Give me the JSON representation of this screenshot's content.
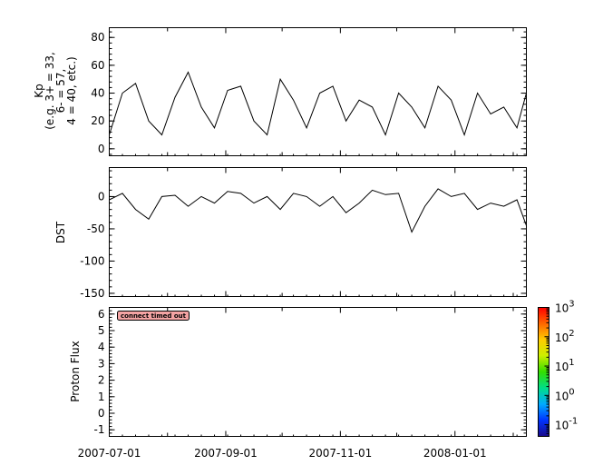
{
  "chart_data": [
    {
      "type": "line",
      "ylabel_lines": [
        "Kp",
        "(e.g. 3+ = 33,",
        "6- = 57,",
        "4 = 40, etc.)"
      ],
      "ylim": [
        -5,
        87
      ],
      "yticks": [
        0,
        20,
        40,
        60,
        80
      ],
      "xlim": [
        "2007-07-01",
        "2008-02-08"
      ],
      "x": [
        "2007-07-01",
        "2007-07-08",
        "2007-07-15",
        "2007-07-22",
        "2007-07-29",
        "2007-08-05",
        "2007-08-12",
        "2007-08-19",
        "2007-08-26",
        "2007-09-02",
        "2007-09-09",
        "2007-09-16",
        "2007-09-23",
        "2007-09-30",
        "2007-10-07",
        "2007-10-14",
        "2007-10-21",
        "2007-10-28",
        "2007-11-04",
        "2007-11-11",
        "2007-11-18",
        "2007-11-25",
        "2007-12-02",
        "2007-12-09",
        "2007-12-16",
        "2007-12-23",
        "2007-12-30",
        "2008-01-06",
        "2008-01-13",
        "2008-01-20",
        "2008-01-27",
        "2008-02-03",
        "2008-02-08"
      ],
      "series": [
        {
          "values": [
            10,
            40,
            47,
            20,
            10,
            37,
            55,
            30,
            15,
            42,
            45,
            20,
            10,
            50,
            35,
            15,
            40,
            45,
            20,
            35,
            30,
            10,
            40,
            30,
            15,
            45,
            35,
            10,
            40,
            25,
            30,
            15,
            40
          ],
          "color": "#000000"
        }
      ]
    },
    {
      "type": "line",
      "ylabel": "DST",
      "ylim": [
        -155,
        45
      ],
      "yticks": [
        0,
        -50,
        -100,
        -150
      ],
      "xlim": [
        "2007-07-01",
        "2008-02-08"
      ],
      "x": [
        "2007-07-01",
        "2007-07-08",
        "2007-07-15",
        "2007-07-22",
        "2007-07-29",
        "2007-08-05",
        "2007-08-12",
        "2007-08-19",
        "2007-08-26",
        "2007-09-02",
        "2007-09-09",
        "2007-09-16",
        "2007-09-23",
        "2007-09-30",
        "2007-10-07",
        "2007-10-14",
        "2007-10-21",
        "2007-10-28",
        "2007-11-04",
        "2007-11-11",
        "2007-11-18",
        "2007-11-25",
        "2007-12-02",
        "2007-12-09",
        "2007-12-16",
        "2007-12-23",
        "2007-12-30",
        "2008-01-06",
        "2008-01-13",
        "2008-01-20",
        "2008-01-27",
        "2008-02-03",
        "2008-02-08"
      ],
      "series": [
        {
          "values": [
            -5,
            5,
            -20,
            -35,
            0,
            2,
            -15,
            0,
            -10,
            8,
            5,
            -10,
            0,
            -20,
            5,
            0,
            -15,
            0,
            -25,
            -10,
            10,
            3,
            5,
            -55,
            -15,
            12,
            0,
            5,
            -20,
            -10,
            -15,
            -5,
            -45
          ],
          "color": "#000000"
        }
      ]
    },
    {
      "type": "heatmap",
      "ylabel": "Proton Flux",
      "ylim": [
        -1.4,
        6.4
      ],
      "yticks": [
        -1,
        0,
        1,
        2,
        3,
        4,
        5,
        6
      ],
      "xlim": [
        "2007-07-01",
        "2008-02-08"
      ],
      "xtick_labels": [
        "2007-07-01",
        "2007-09-01",
        "2007-11-01",
        "2008-01-01"
      ],
      "message": "connect timed out",
      "colorbar": {
        "colors": [
          "#1a0a8a",
          "#0033ff",
          "#00aaff",
          "#00dd88",
          "#33dd00",
          "#ccee00",
          "#ffcc00",
          "#ff6600",
          "#ff0000"
        ],
        "tick_bases": [
          "10",
          "10",
          "10",
          "10",
          "10"
        ],
        "tick_exponents": [
          "-1",
          "0",
          "1",
          "2",
          "3"
        ]
      }
    }
  ]
}
